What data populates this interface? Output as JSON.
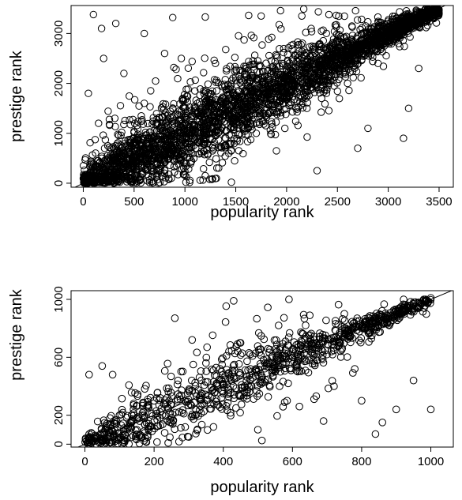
{
  "chart_data": [
    {
      "type": "scatter",
      "title": "",
      "xlabel": "popularity rank",
      "ylabel": "prestige rank",
      "xlim": [
        -120,
        3640
      ],
      "ylim": [
        -80,
        3560
      ],
      "xticks": [
        0,
        500,
        1000,
        1500,
        2000,
        2500,
        3000,
        3500
      ],
      "yticks": [
        0,
        1000,
        2000,
        3000
      ],
      "reference_line": "y = x",
      "grid": false,
      "legend": "none",
      "n_points": 3400,
      "series": [
        {
          "sample_points": [
            [
              100,
              3380
            ],
            [
              180,
              3100
            ],
            [
              320,
              3200
            ],
            [
              880,
              3320
            ],
            [
              1200,
              3330
            ],
            [
              1750,
              3350
            ],
            [
              2150,
              3350
            ],
            [
              600,
              3000
            ],
            [
              200,
              2500
            ],
            [
              400,
              2200
            ],
            [
              800,
              2600
            ],
            [
              1300,
              2400
            ],
            [
              50,
              1800
            ],
            [
              150,
              1200
            ],
            [
              600,
              1600
            ],
            [
              1000,
              1500
            ],
            [
              1500,
              1700
            ],
            [
              2000,
              2100
            ],
            [
              2500,
              2600
            ],
            [
              3000,
              3000
            ],
            [
              3400,
              3450
            ],
            [
              2800,
              1100
            ],
            [
              3150,
              900
            ],
            [
              2300,
              250
            ],
            [
              2700,
              700
            ],
            [
              1900,
              650
            ],
            [
              1200,
              150
            ],
            [
              800,
              200
            ],
            [
              500,
              500
            ],
            [
              300,
              200
            ],
            [
              3200,
              1500
            ],
            [
              2600,
              2000
            ],
            [
              3300,
              2300
            ],
            [
              1700,
              1200
            ],
            [
              1400,
              900
            ],
            [
              2200,
              1500
            ],
            [
              900,
              1000
            ],
            [
              3100,
              2800
            ],
            [
              3450,
              3300
            ],
            [
              2900,
              2400
            ]
          ]
        }
      ]
    },
    {
      "type": "scatter",
      "title": "",
      "xlabel": "popularity rank",
      "ylabel": "prestige rank",
      "xlim": [
        -40,
        1065
      ],
      "ylim": [
        -20,
        1060
      ],
      "xticks": [
        0,
        200,
        400,
        600,
        800,
        1000
      ],
      "yticks": [
        0,
        200,
        600,
        1000
      ],
      "reference_line": "y = x",
      "grid": false,
      "legend": "none",
      "n_points": 1000,
      "series": [
        {
          "sample_points": [
            [
              12,
              480
            ],
            [
              50,
              540
            ],
            [
              80,
              480
            ],
            [
              260,
              870
            ],
            [
              310,
              720
            ],
            [
              430,
              990
            ],
            [
              590,
              1000
            ],
            [
              650,
              890
            ],
            [
              980,
              1000
            ],
            [
              1000,
              1010
            ],
            [
              720,
              400
            ],
            [
              800,
              300
            ],
            [
              860,
              150
            ],
            [
              900,
              240
            ],
            [
              840,
              70
            ],
            [
              950,
              440
            ],
            [
              1000,
              240
            ],
            [
              690,
              160
            ],
            [
              500,
              100
            ],
            [
              300,
              50
            ],
            [
              150,
              100
            ],
            [
              200,
              300
            ],
            [
              400,
              350
            ],
            [
              600,
              600
            ],
            [
              800,
              800
            ],
            [
              350,
              560
            ],
            [
              450,
              700
            ],
            [
              550,
              500
            ],
            [
              700,
              620
            ],
            [
              750,
              900
            ],
            [
              900,
              900
            ],
            [
              950,
              970
            ],
            [
              100,
              200
            ],
            [
              250,
              150
            ],
            [
              620,
              260
            ],
            [
              780,
              520
            ],
            [
              880,
              820
            ],
            [
              30,
              60
            ],
            [
              560,
              820
            ],
            [
              420,
              460
            ]
          ]
        }
      ]
    }
  ]
}
